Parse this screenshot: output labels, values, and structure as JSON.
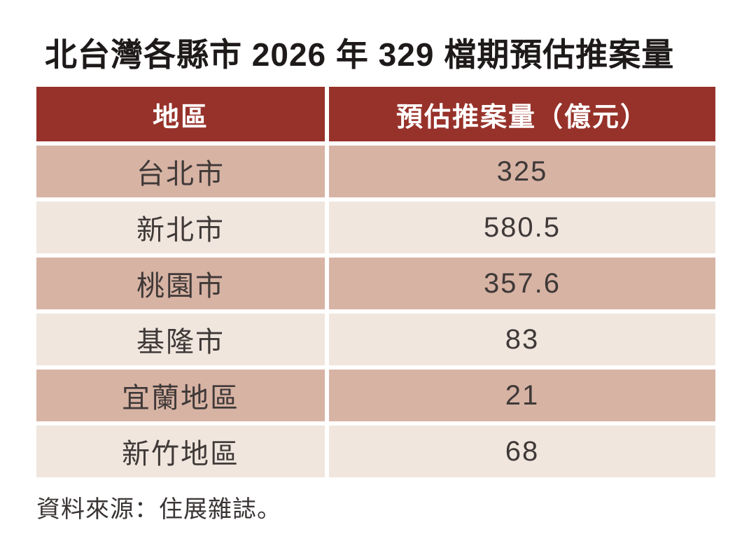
{
  "title": "北台灣各縣市 2026 年 329 檔期預估推案量",
  "table": {
    "headers": [
      "地區",
      "預估推案量（億元）"
    ],
    "rows": [
      {
        "region": "台北市",
        "value": "325"
      },
      {
        "region": "新北市",
        "value": "580.5"
      },
      {
        "region": "桃園市",
        "value": "357.6"
      },
      {
        "region": "基隆市",
        "value": "83"
      },
      {
        "region": "宜蘭地區",
        "value": "21"
      },
      {
        "region": "新竹地區",
        "value": "68"
      }
    ]
  },
  "footer": {
    "source": "資料來源：住展雜誌。"
  },
  "colors": {
    "header_bg": "#97322a",
    "header_text": "#ffffff",
    "row_dark_bg": "#d7b3a4",
    "row_light_bg": "#f0e6de",
    "cell_text": "#3f3938",
    "title_text": "#1e1a1a"
  },
  "chart_data": {
    "type": "table",
    "title": "北台灣各縣市 2026 年 329 檔期預估推案量",
    "columns": [
      "地區",
      "預估推案量（億元）"
    ],
    "categories": [
      "台北市",
      "新北市",
      "桃園市",
      "基隆市",
      "宜蘭地區",
      "新竹地區"
    ],
    "values": [
      325,
      580.5,
      357.6,
      83,
      21,
      68
    ],
    "unit": "億元",
    "source": "資料來源：住展雜誌。"
  }
}
